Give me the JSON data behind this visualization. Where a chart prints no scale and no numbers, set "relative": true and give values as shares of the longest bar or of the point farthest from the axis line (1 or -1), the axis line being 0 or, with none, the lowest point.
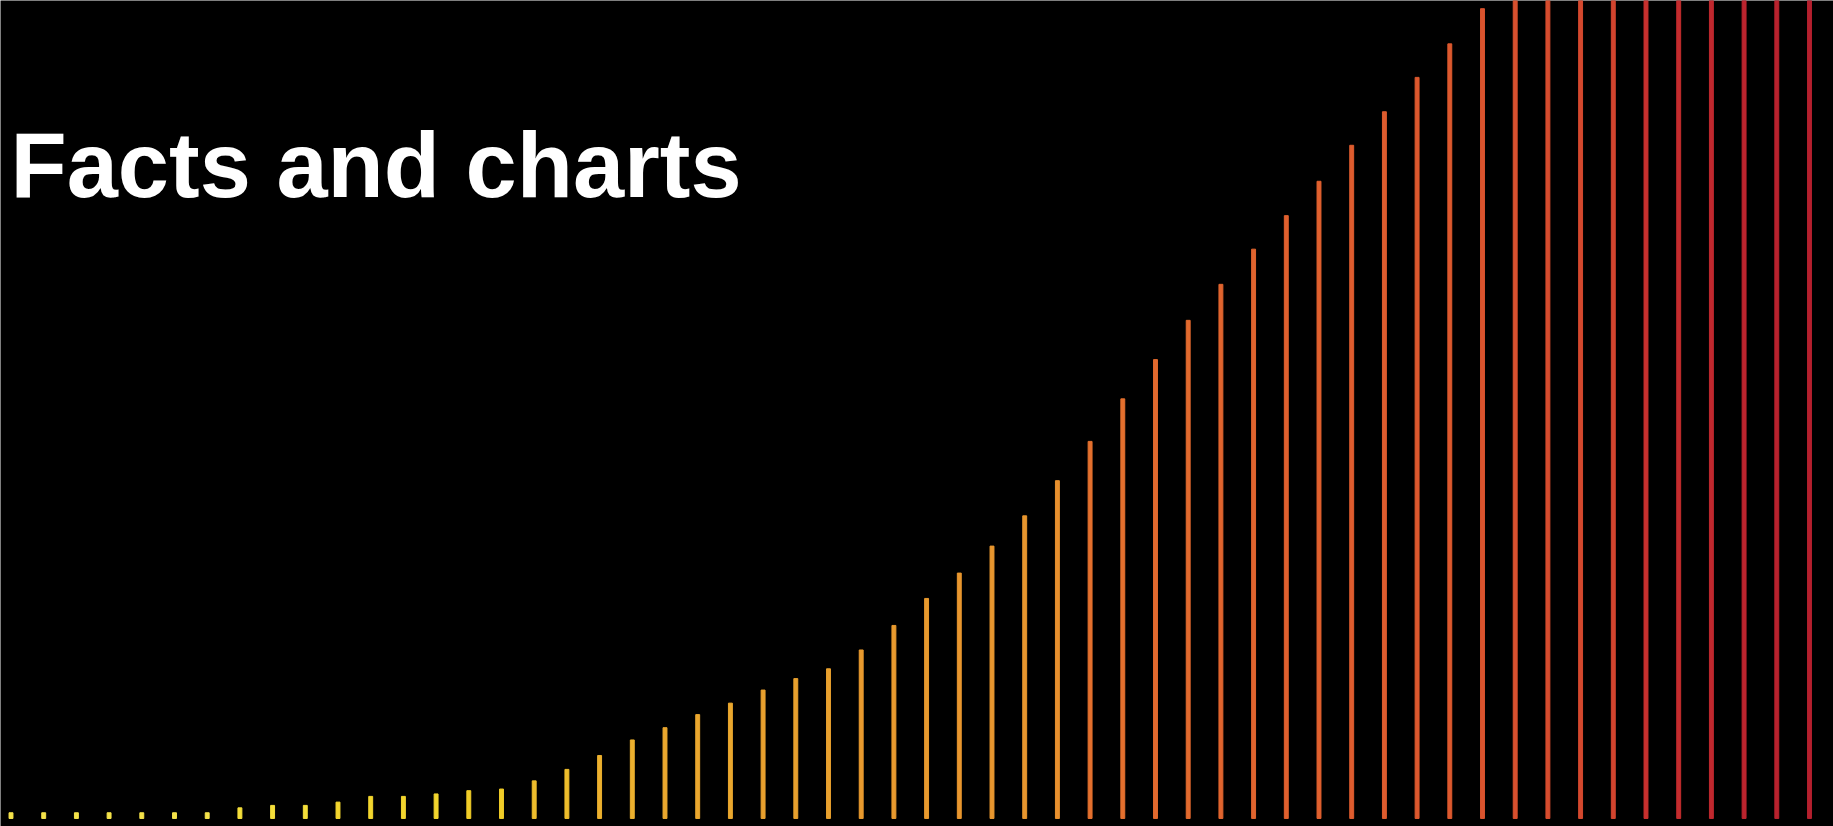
{
  "chart_data": {
    "type": "bar",
    "title": "Facts and charts",
    "relative": true,
    "categories": [
      null,
      null,
      null,
      null,
      null,
      null,
      null,
      null,
      null,
      null,
      null,
      null,
      null,
      null,
      null,
      null,
      null,
      null,
      null,
      null,
      null,
      null,
      null,
      null,
      null,
      null,
      null,
      null,
      null,
      null,
      null,
      null,
      null,
      null,
      null,
      null,
      null,
      null,
      null,
      null,
      null,
      null,
      null,
      null,
      null,
      null,
      null,
      null,
      null,
      null,
      null,
      null,
      null,
      null,
      null,
      null
    ],
    "values": [
      0.007,
      0.007,
      0.007,
      0.007,
      0.007,
      0.007,
      0.007,
      0.013,
      0.016,
      0.016,
      0.02,
      0.027,
      0.027,
      0.03,
      0.034,
      0.036,
      0.046,
      0.06,
      0.077,
      0.096,
      0.111,
      0.127,
      0.141,
      0.157,
      0.171,
      0.183,
      0.206,
      0.236,
      0.269,
      0.3,
      0.333,
      0.37,
      0.413,
      0.461,
      0.513,
      0.561,
      0.609,
      0.653,
      0.696,
      0.737,
      0.779,
      0.823,
      0.864,
      0.906,
      0.947,
      0.99,
      1,
      1,
      1,
      1,
      1,
      1,
      1,
      1,
      1,
      1
    ],
    "colors": [
      "#f4e24a",
      "#f4e24a",
      "#f4e24a",
      "#f4e24a",
      "#f4e24a",
      "#f4e24a",
      "#f4e24a",
      "#f4de3a",
      "#f4de3a",
      "#f4de3a",
      "#f2d52e",
      "#f2d52e",
      "#f2d52e",
      "#f2d52e",
      "#f0cc28",
      "#f0cc28",
      "#eebd2c",
      "#eebd2c",
      "#ecb02e",
      "#ecb02e",
      "#eaa72e",
      "#eaa72e",
      "#eaa72e",
      "#e8a02e",
      "#e8a02e",
      "#e8a02e",
      "#e89a2e",
      "#e89a2e",
      "#e89a2e",
      "#e8962e",
      "#e8962e",
      "#e8962e",
      "#e8902e",
      "#e4702e",
      "#e4702e",
      "#e26a2e",
      "#e26a2e",
      "#e0642e",
      "#e0642e",
      "#e0602e",
      "#e0602e",
      "#de5c2e",
      "#de5c2e",
      "#dc582e",
      "#dc582e",
      "#da542e",
      "#d8502e",
      "#d64c2e",
      "#d4482e",
      "#d2442e",
      "#c8302e",
      "#c42c2e",
      "#c0282e",
      "#bc242e",
      "#b8222e",
      "#b4202e"
    ]
  }
}
